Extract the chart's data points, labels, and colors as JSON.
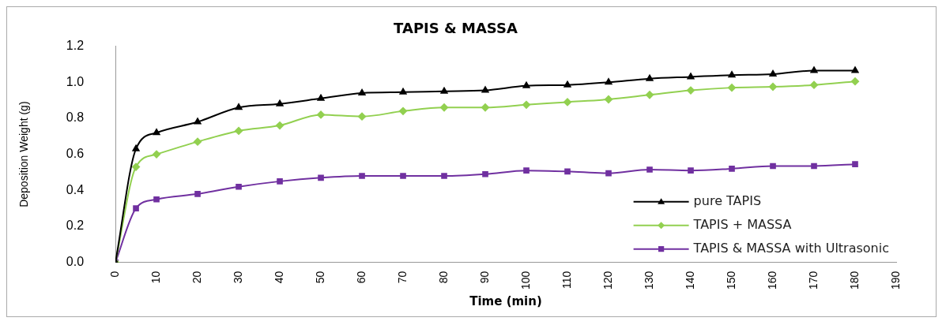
{
  "chart_data": {
    "type": "line",
    "title": "TAPIS & MASSA",
    "xlabel": "Time (min)",
    "ylabel": "Deposition Weight (g)",
    "x": [
      0,
      5,
      10,
      20,
      30,
      40,
      50,
      60,
      70,
      80,
      90,
      100,
      110,
      120,
      130,
      140,
      150,
      160,
      170,
      180
    ],
    "series": [
      {
        "name": "pure TAPIS",
        "color": "#000000",
        "marker": "triangle",
        "values": [
          0,
          0.63,
          0.72,
          0.78,
          0.86,
          0.88,
          0.91,
          0.94,
          0.945,
          0.95,
          0.955,
          0.98,
          0.985,
          1.0,
          1.02,
          1.03,
          1.04,
          1.045,
          1.065,
          1.065
        ]
      },
      {
        "name": "TAPIS + MASSA",
        "color": "#92d050",
        "marker": "diamond",
        "values": [
          0,
          0.53,
          0.6,
          0.67,
          0.73,
          0.76,
          0.82,
          0.81,
          0.84,
          0.86,
          0.86,
          0.875,
          0.89,
          0.905,
          0.93,
          0.955,
          0.97,
          0.975,
          0.985,
          1.005
        ]
      },
      {
        "name": "TAPIS & MASSA with Ultrasonic",
        "color": "#7030a0",
        "marker": "square",
        "values": [
          0,
          0.3,
          0.35,
          0.38,
          0.42,
          0.45,
          0.47,
          0.48,
          0.48,
          0.48,
          0.49,
          0.51,
          0.505,
          0.495,
          0.515,
          0.51,
          0.52,
          0.535,
          0.535,
          0.545
        ]
      }
    ],
    "xlim": [
      0,
      190
    ],
    "xticks": [
      0,
      10,
      20,
      30,
      40,
      50,
      60,
      70,
      80,
      90,
      100,
      110,
      120,
      130,
      140,
      150,
      160,
      170,
      180,
      190
    ],
    "ylim": [
      0,
      1.2
    ],
    "yticks": [
      {
        "value": 0,
        "label": "0.0"
      },
      0.2,
      0.4,
      0.6,
      0.8,
      {
        "value": 1,
        "label": "1.0"
      },
      1.2
    ],
    "grid": false,
    "legend": "bottom right"
  }
}
